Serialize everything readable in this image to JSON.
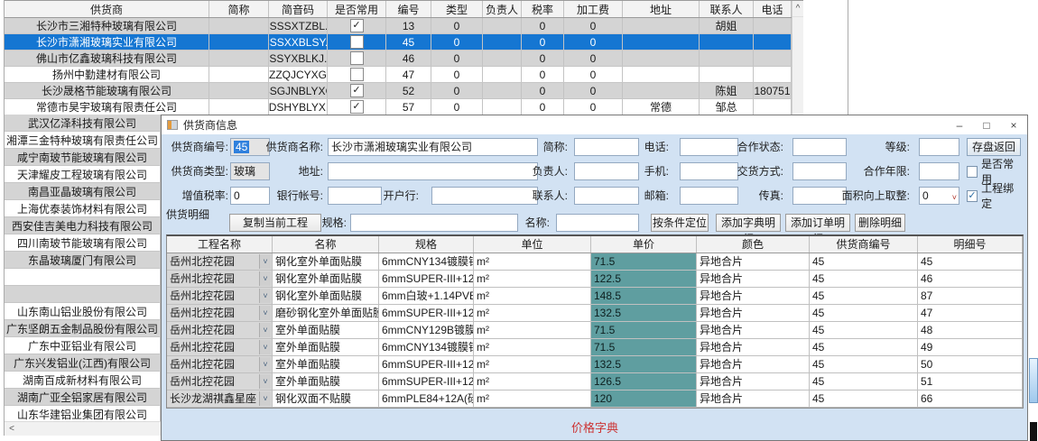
{
  "glyphs": {
    "check": "✓",
    "combo_arrow": "˅",
    "scroll_up": "^",
    "scroll_left": "<"
  },
  "colors": {
    "selection_blue": "#1576d2",
    "price_cell_teal": "#5f9ea0",
    "dialog_bg": "#d2e2f3",
    "footer_red": "#cc3333"
  },
  "background_grid": {
    "columns": [
      "供货商",
      "简称",
      "简音码",
      "是否常用",
      "编号",
      "类型",
      "负责人",
      "税率",
      "加工费",
      "地址",
      "联系人",
      "电话"
    ],
    "rows": [
      {
        "supplier": "长沙市三湘特种玻璃有限公司",
        "abbr": "",
        "code": "CSSSXTZBL...",
        "common": true,
        "id": "13",
        "type": "0",
        "leader": "",
        "tax": "0",
        "fee": "0",
        "addr": "",
        "contact": "胡姐",
        "phone": "",
        "selected": false
      },
      {
        "supplier": "长沙市潇湘玻璃实业有限公司",
        "abbr": "",
        "code": "CSSXXBLSY...",
        "common": false,
        "id": "45",
        "type": "0",
        "leader": "",
        "tax": "0",
        "fee": "0",
        "addr": "",
        "contact": "",
        "phone": "",
        "selected": true
      },
      {
        "supplier": "佛山市亿鑫玻璃科技有限公司",
        "abbr": "",
        "code": "FSSYXBLKJ...",
        "common": false,
        "id": "46",
        "type": "0",
        "leader": "",
        "tax": "0",
        "fee": "0",
        "addr": "",
        "contact": "",
        "phone": "",
        "selected": false
      },
      {
        "supplier": "扬州中勤建材有限公司",
        "abbr": "",
        "code": "YZZQJCYXGS",
        "common": false,
        "id": "47",
        "type": "0",
        "leader": "",
        "tax": "0",
        "fee": "0",
        "addr": "",
        "contact": "",
        "phone": "",
        "selected": false
      },
      {
        "supplier": "长沙晟格节能玻璃有限公司",
        "abbr": "",
        "code": "CSSGJNBLYXGS",
        "common": true,
        "id": "52",
        "type": "0",
        "leader": "",
        "tax": "0",
        "fee": "0",
        "addr": "",
        "contact": "陈姐",
        "phone": "180751",
        "selected": false
      },
      {
        "supplier": "常德市昊宇玻璃有限责任公司",
        "abbr": "",
        "code": "CDSHYBLYX...",
        "common": true,
        "id": "57",
        "type": "0",
        "leader": "",
        "tax": "0",
        "fee": "0",
        "addr": "常德",
        "contact": "邹总",
        "phone": "",
        "selected": false
      }
    ],
    "left_list": [
      "武汉亿泽科技有限公司",
      "湘潭三金特种玻璃有限责任公司",
      "咸宁南玻节能玻璃有限公司",
      "天津耀皮工程玻璃有限公司",
      "南昌亚晶玻璃有限公司",
      "上海优泰装饰材料有限公司",
      "西安佳吉美电力科技有限公司",
      "四川南玻节能玻璃有限公司",
      "东晶玻璃厦门有限公司",
      "",
      "",
      "山东南山铝业股份有限公司",
      "广东坚朗五金制品股份有限公司",
      "广东中亚铝业有限公司",
      "广东兴发铝业(江西)有限公司",
      "湖南百成新材料有限公司",
      "湖南广亚全铝家居有限公司",
      "山东华建铝业集团有限公司"
    ]
  },
  "dialog": {
    "title": "供货商信息",
    "controls": {
      "minimize": "–",
      "maximize": "□",
      "close": "×"
    },
    "form": {
      "supplier_id": {
        "label": "供货商编号:",
        "value": "45"
      },
      "supplier_name": {
        "label": "供货商名称:",
        "value": "长沙市潇湘玻璃实业有限公司"
      },
      "abbr": {
        "label": "简称:",
        "value": ""
      },
      "phone": {
        "label": "电话:",
        "value": ""
      },
      "coop_status": {
        "label": "合作状态:",
        "value": ""
      },
      "grade": {
        "label": "等级:",
        "value": ""
      },
      "save_button": "存盘返回",
      "supplier_type": {
        "label": "供货商类型:",
        "value": "玻璃"
      },
      "address": {
        "label": "地址:",
        "value": ""
      },
      "leader": {
        "label": "负责人:",
        "value": ""
      },
      "mobile": {
        "label": "手机:",
        "value": ""
      },
      "delivery": {
        "label": "交货方式:",
        "value": ""
      },
      "coop_years": {
        "label": "合作年限:",
        "value": ""
      },
      "common_check": {
        "label": "是否常用",
        "checked": false
      },
      "vat": {
        "label": "增值税率:",
        "value": "0"
      },
      "bank_account": {
        "label": "银行帐号:",
        "value": ""
      },
      "bank": {
        "label": "开户行:",
        "value": ""
      },
      "contact": {
        "label": "联系人:",
        "value": ""
      },
      "email": {
        "label": "邮箱:",
        "value": ""
      },
      "fax": {
        "label": "传真:",
        "value": ""
      },
      "round_up": {
        "label": "面积向上取整:",
        "value": "0"
      },
      "project_bind": {
        "label": "工程绑定",
        "checked": true
      }
    },
    "detail": {
      "section_label": "供货明细",
      "copy_button": "复制当前工程",
      "spec_filter": {
        "label": "规格:",
        "value": ""
      },
      "name_filter": {
        "label": "名称:",
        "value": ""
      },
      "locate_button": "按条件定位",
      "add_dict_button": "添加字典明细",
      "add_order_button": "添加订单明细",
      "delete_button": "删除明细",
      "columns": [
        "工程名称",
        "名称",
        "规格",
        "单位",
        "单价",
        "颜色",
        "供货商编号",
        "明细号"
      ],
      "rows": [
        [
          "岳州北控花园",
          "钢化室外单面贴膜",
          "6mmCNY134镀膜钢化",
          "m²",
          "71.5",
          "异地合片",
          "45",
          "45"
        ],
        [
          "岳州北控花园",
          "钢化室外单面贴膜",
          "6mmSUPER-III+12A(硅...",
          "m²",
          "122.5",
          "异地合片",
          "45",
          "46"
        ],
        [
          "岳州北控花园",
          "钢化室外单面贴膜",
          "6mm白玻+1.14PVB+6mm...",
          "m²",
          "148.5",
          "异地合片",
          "45",
          "87"
        ],
        [
          "岳州北控花园",
          "磨砂钢化室外单面贴膜",
          "6mmSUPER-III+12A(硅...",
          "m²",
          "132.5",
          "异地合片",
          "45",
          "47"
        ],
        [
          "岳州北控花园",
          "室外单面贴膜",
          "6mmCNY129B镀膜钢化",
          "m²",
          "71.5",
          "异地合片",
          "45",
          "48"
        ],
        [
          "岳州北控花园",
          "室外单面贴膜",
          "6mmCNY134镀膜钢化",
          "m²",
          "71.5",
          "异地合片",
          "45",
          "49"
        ],
        [
          "岳州北控花园",
          "室外单面贴膜",
          "6mmSUPER-III+12A(硅...",
          "m²",
          "132.5",
          "异地合片",
          "45",
          "50"
        ],
        [
          "岳州北控花园",
          "室外单面贴膜",
          "6mmSUPER-III+12A(硅...",
          "m²",
          "126.5",
          "异地合片",
          "45",
          "51"
        ],
        [
          "长沙龙湖祺鑫星座",
          "钢化双面不贴膜",
          "6mmPLE84+12A(硅酮胶...",
          "m²",
          "120",
          "异地合片",
          "45",
          "66"
        ]
      ],
      "footer": "价格字典"
    }
  }
}
